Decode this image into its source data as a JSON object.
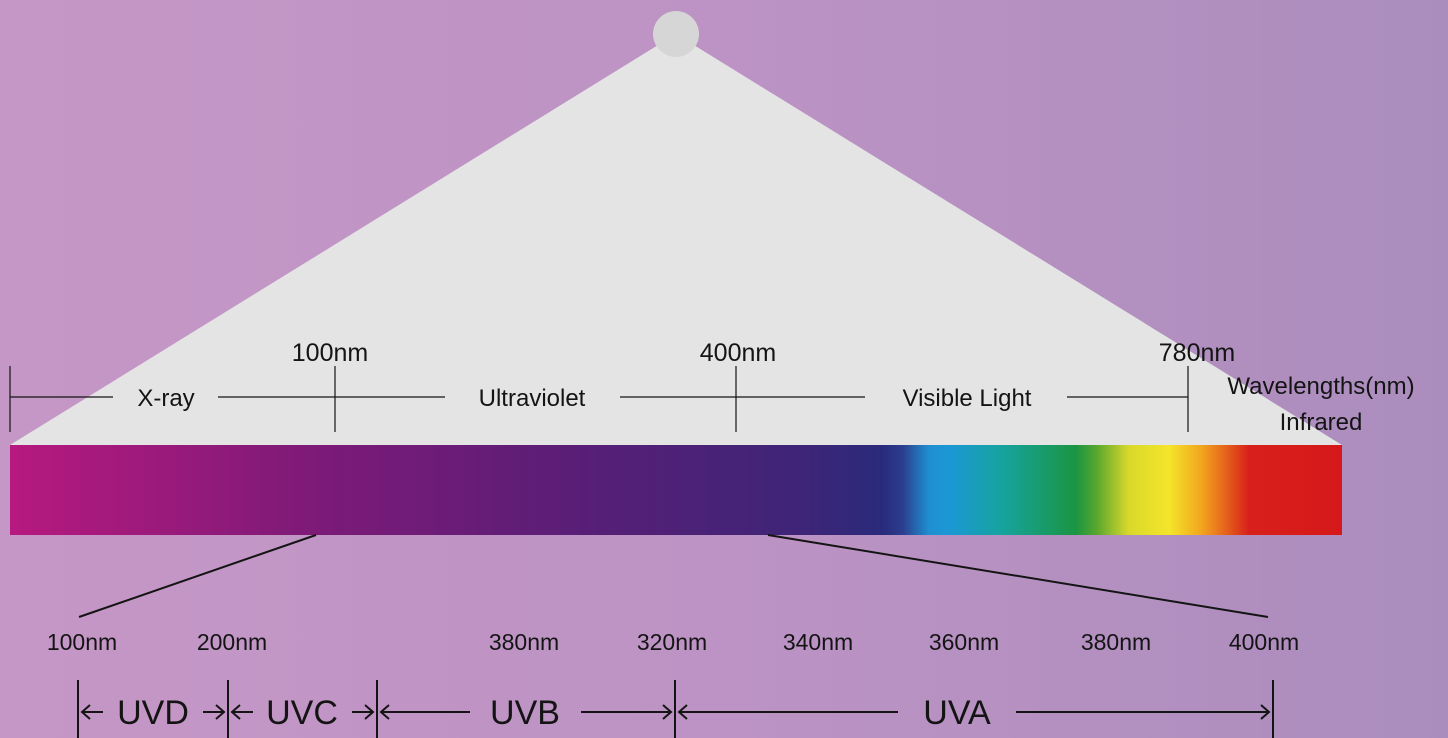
{
  "top_scale": {
    "boundaries": [
      "100nm",
      "400nm",
      "780nm"
    ],
    "regions": [
      "X-ray",
      "Ultraviolet",
      "Visible Light"
    ],
    "axis_title": "Wavelengths(nm)",
    "right_region": "Infrared"
  },
  "zoom_scale": {
    "ticks": [
      "100nm",
      "200nm",
      "380nm",
      "320nm",
      "340nm",
      "360nm",
      "380nm",
      "400nm"
    ]
  },
  "uv_bands": [
    "UVD",
    "UVC",
    "UVB",
    "UVA"
  ],
  "colors": {
    "beam": "#e4e4e4",
    "source": "#d6d6d6",
    "ink": "#141414"
  }
}
